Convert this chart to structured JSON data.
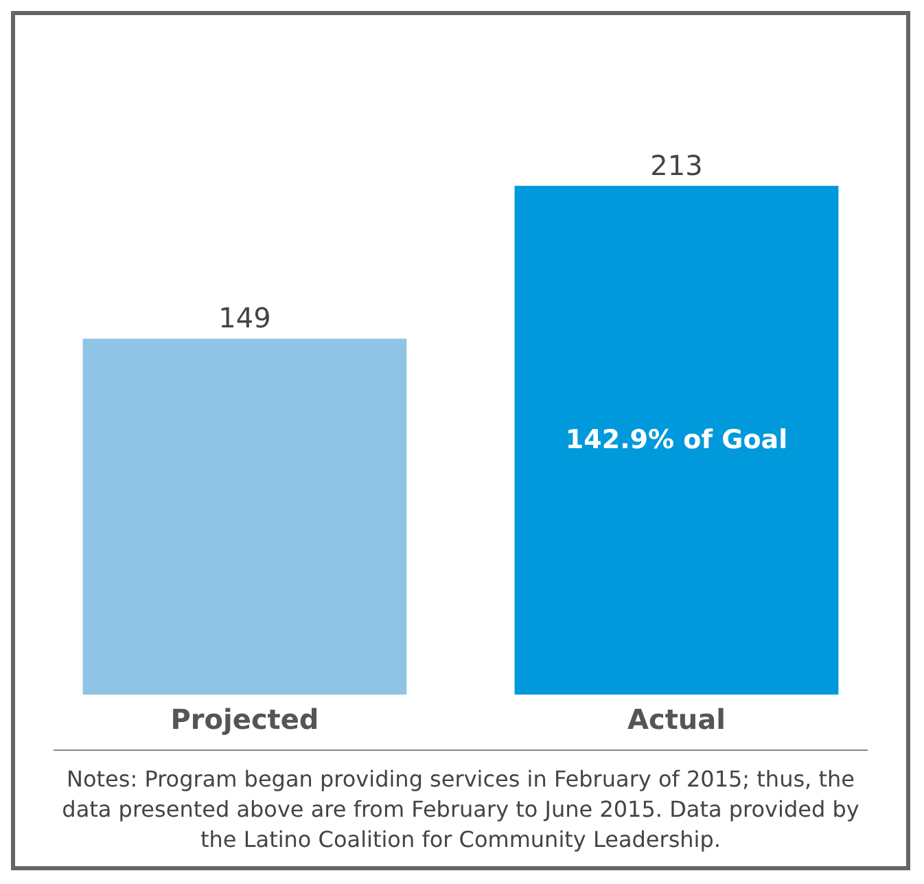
{
  "chart_data": {
    "type": "bar",
    "categories": [
      "Projected",
      "Actual"
    ],
    "values": [
      149,
      213
    ],
    "colors": [
      "#8fc4e7",
      "#0099db"
    ],
    "data_labels": true,
    "annotations": [
      "142.9% of Goal",
      "Notes: Program began providing services in February of 2015; thus, the data presented above are from February to June 2015. Data provided by the Latino Coalition for Community Leadership."
    ]
  }
}
